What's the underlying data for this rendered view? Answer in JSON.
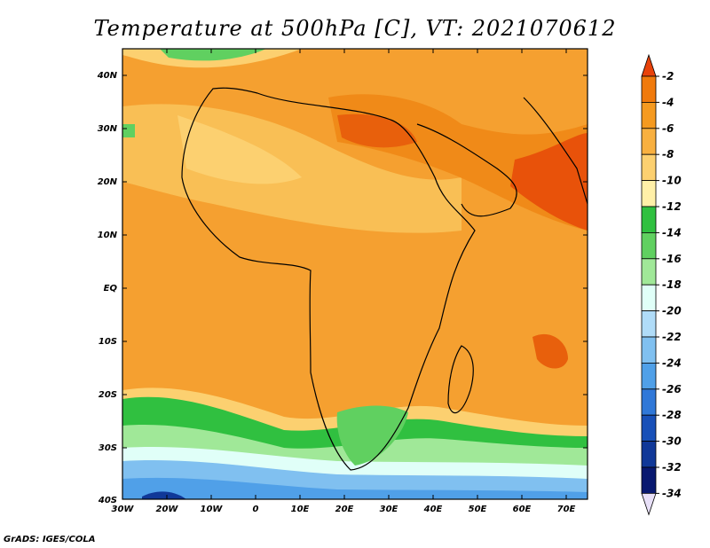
{
  "title": "Temperature at 500hPa [C], VT: 2021070612",
  "footer": "GrADS: IGES/COLA",
  "lat_labels": [
    "40N",
    "30N",
    "20N",
    "10N",
    "EQ",
    "10S",
    "20S",
    "30S",
    "40S"
  ],
  "lon_labels": [
    "30W",
    "20W",
    "10W",
    "0",
    "10E",
    "20E",
    "30E",
    "40E",
    "50E",
    "60E",
    "70E"
  ],
  "colorbar": {
    "labels": [
      "-2",
      "-4",
      "-6",
      "-8",
      "-10",
      "-12",
      "-14",
      "-16",
      "-18",
      "-20",
      "-22",
      "-24",
      "-26",
      "-28",
      "-30",
      "-32",
      "-34"
    ],
    "colors": [
      "#e8420a",
      "#f07a0c",
      "#f59a20",
      "#f8b040",
      "#fcd070",
      "#fff0a8",
      "#30c040",
      "#60d060",
      "#a0e898",
      "#e0fff8",
      "#b0dcf8",
      "#80c0f0",
      "#50a0e8",
      "#3078d8",
      "#1850b8",
      "#103898",
      "#081870"
    ]
  }
}
